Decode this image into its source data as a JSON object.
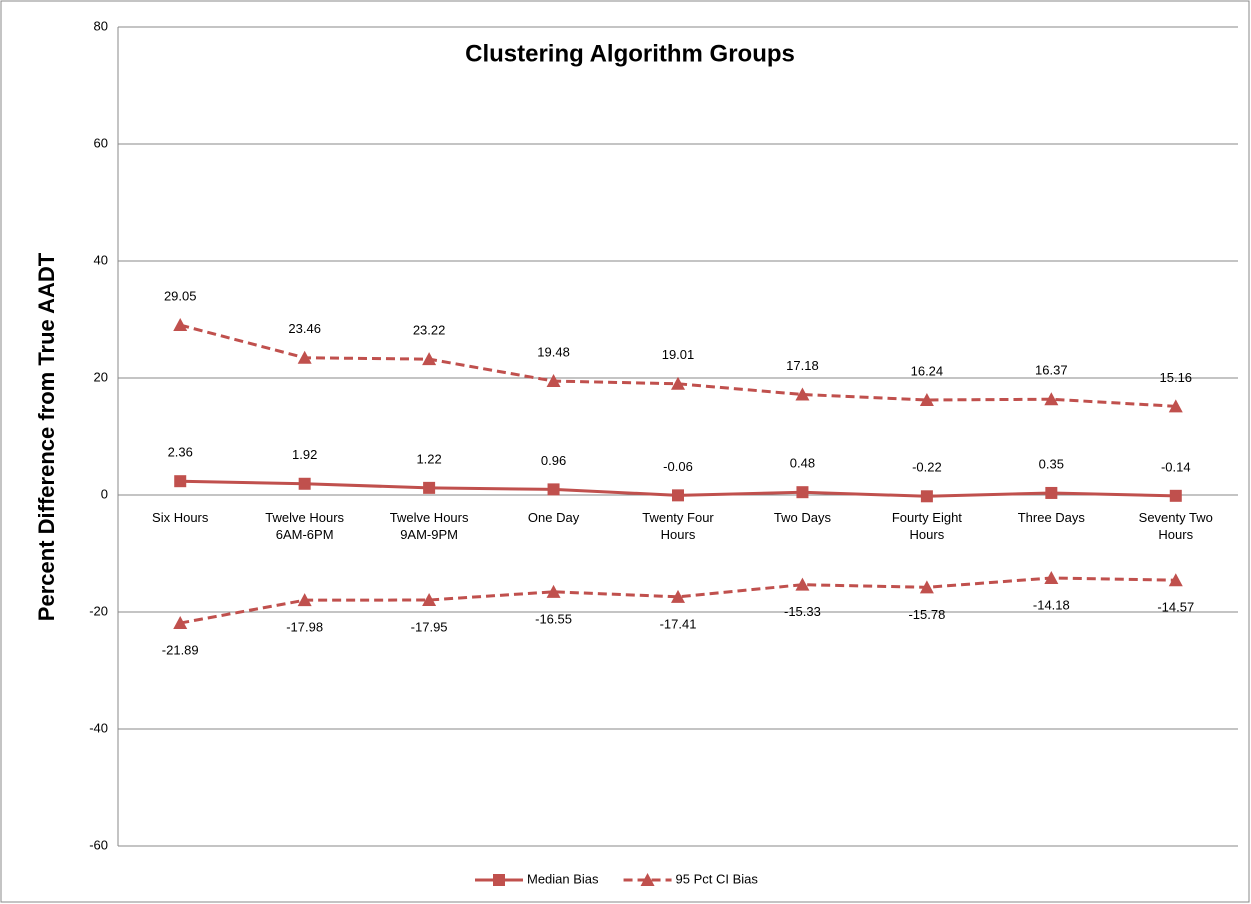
{
  "chart_data": {
    "type": "line",
    "title": "Clustering Algorithm Groups",
    "y_label": "Percent Difference from True AADT",
    "categories": [
      "Six Hours",
      "Twelve Hours 6AM-6PM",
      "Twelve Hours 9AM-9PM",
      "One Day",
      "Twenty Four Hours",
      "Two Days",
      "Fourty Eight Hours",
      "Three Days",
      "Seventy Two Hours"
    ],
    "series": [
      {
        "name": "Median Bias",
        "color": "#c0504d",
        "marker": "square",
        "line_style": "solid",
        "values": [
          2.36,
          1.92,
          1.22,
          0.96,
          -0.06,
          0.48,
          -0.22,
          0.35,
          -0.14
        ]
      },
      {
        "name": "95 Pct CI Bias",
        "color": "#c0504d",
        "marker": "triangle",
        "line_style": "dashed",
        "values": [
          29.05,
          23.46,
          23.22,
          19.48,
          19.01,
          17.18,
          16.24,
          16.37,
          15.16
        ],
        "lower": [
          -21.89,
          -17.98,
          -17.95,
          -16.55,
          -17.41,
          -15.33,
          -15.78,
          -14.18,
          -14.57
        ]
      }
    ],
    "ylim": [
      -60,
      80
    ],
    "yticks": [
      -60,
      -40,
      -20,
      0,
      20,
      40,
      60,
      80
    ],
    "grid": true,
    "legend": "bottom"
  }
}
